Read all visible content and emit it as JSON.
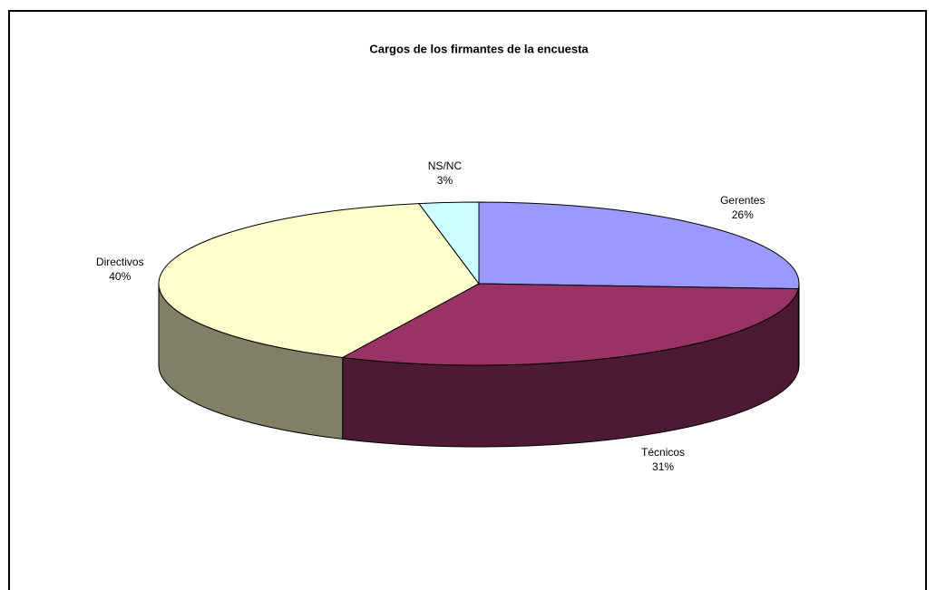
{
  "chart_data": {
    "type": "pie",
    "title": "Cargos de los firmantes de la encuesta",
    "categories": [
      "Gerentes",
      "Técnicos",
      "Directivos",
      "NS/NC"
    ],
    "values": [
      26,
      31,
      40,
      3
    ],
    "value_labels": [
      "26%",
      "31%",
      "40%",
      "3%"
    ],
    "colors": [
      "#9999ff",
      "#993366",
      "#ffffcc",
      "#ccffff"
    ]
  }
}
